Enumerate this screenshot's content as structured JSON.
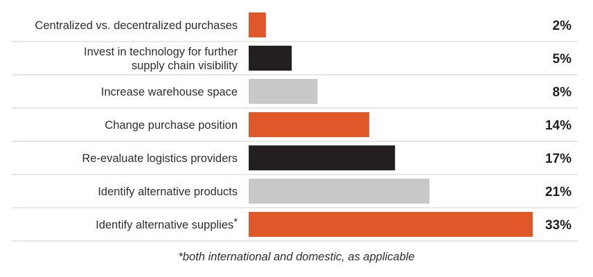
{
  "chart_data": {
    "type": "bar",
    "orientation": "horizontal",
    "categories": [
      "Centralized vs. decentralized purchases",
      "Invest in technology for further supply chain visibility",
      "Increase warehouse space",
      "Change purchase position",
      "Re-evaluate logistics providers",
      "Identify alternative products",
      "Identify alternative supplies*"
    ],
    "category_lines": [
      [
        "Centralized vs. decentralized purchases"
      ],
      [
        "Invest in technology for further",
        "supply chain visibility"
      ],
      [
        "Increase warehouse space"
      ],
      [
        "Change purchase position"
      ],
      [
        "Re-evaluate logistics providers"
      ],
      [
        "Identify alternative products"
      ],
      [
        "Identify alternative supplies*"
      ]
    ],
    "values": [
      2,
      5,
      8,
      14,
      17,
      21,
      33
    ],
    "value_labels": [
      "2%",
      "5%",
      "8%",
      "14%",
      "17%",
      "21%",
      "33%"
    ],
    "bar_colors": [
      "#e0582a",
      "#231f20",
      "#c8c8c8",
      "#e0582a",
      "#231f20",
      "#c8c8c8",
      "#e0582a"
    ],
    "xlim": [
      0,
      33
    ],
    "grid": false,
    "legend": "none",
    "title": "",
    "xlabel": "",
    "ylabel": ""
  },
  "footnote": "*both international and domestic, as applicable",
  "colors": {
    "orange": "#e0582a",
    "black": "#231f20",
    "gray": "#c8c8c8",
    "divider": "#cfcfcf"
  }
}
